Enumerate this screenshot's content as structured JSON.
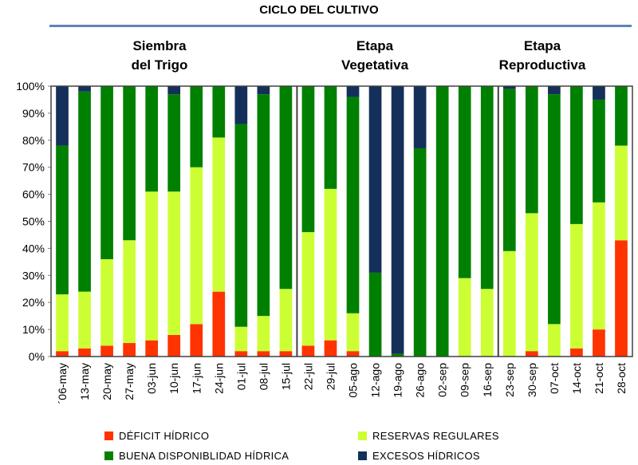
{
  "chart_data": {
    "type": "bar",
    "stacked": true,
    "percent": true,
    "title": "CICLO DEL CULTIVO",
    "stages": [
      {
        "lines": [
          "Siembra",
          "del Trigo"
        ]
      },
      {
        "lines": [
          "Etapa",
          "Vegetativa"
        ]
      },
      {
        "lines": [
          "Etapa",
          "Reproductiva"
        ]
      }
    ],
    "categories": [
      "´06-may",
      "13-may",
      "20-may",
      "27-may",
      "03-jun",
      "10-jun",
      "17-jun",
      "24-jun",
      "01-jul",
      "08-jul",
      "15-jul",
      "22-jul",
      "29-jul",
      "05-ago",
      "12-ago",
      "19-ago",
      "26-ago",
      "02-sep",
      "09-sep",
      "16-sep",
      "23-sep",
      "30-sep",
      "07-oct",
      "14-oct",
      "21-oct",
      "28-oct"
    ],
    "series": [
      {
        "name": "DÉFICIT HÍDRICO",
        "color": "#ff3300",
        "values": [
          2,
          3,
          4,
          5,
          6,
          8,
          12,
          24,
          2,
          2,
          2,
          4,
          6,
          2,
          0,
          0,
          0,
          0,
          0,
          0,
          0,
          2,
          0,
          3,
          10,
          43
        ]
      },
      {
        "name": "RESERVAS REGULARES",
        "color": "#ccff33",
        "values": [
          21,
          21,
          32,
          38,
          55,
          53,
          58,
          57,
          9,
          13,
          23,
          42,
          56,
          14,
          0,
          0,
          0,
          0,
          29,
          25,
          39,
          51,
          12,
          46,
          47,
          35
        ]
      },
      {
        "name": "BUENA DISPONIBLIDAD HÍDRICA",
        "color": "#008000",
        "values": [
          55,
          74,
          64,
          57,
          39,
          36,
          30,
          19,
          75,
          82,
          75,
          54,
          38,
          80,
          31,
          1,
          77,
          100,
          71,
          75,
          60,
          47,
          85,
          51,
          38,
          22
        ]
      },
      {
        "name": "EXCESOS HÍDRICOS",
        "color": "#14305a",
        "values": [
          22,
          2,
          0,
          0,
          0,
          3,
          0,
          0,
          14,
          3,
          0,
          0,
          0,
          4,
          69,
          99,
          23,
          0,
          0,
          0,
          1,
          0,
          3,
          0,
          5,
          0
        ]
      }
    ],
    "ylabel": "",
    "xlabel": "",
    "ylim": [
      0,
      100
    ],
    "yticks": [
      "0%",
      "10%",
      "20%",
      "30%",
      "40%",
      "50%",
      "60%",
      "70%",
      "80%",
      "90%",
      "100%"
    ],
    "stage_boundaries_after": [
      "15-jul",
      "16-sep"
    ]
  }
}
